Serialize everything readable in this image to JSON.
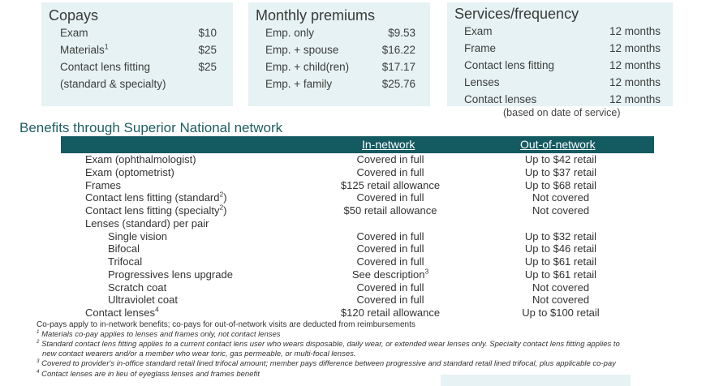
{
  "copays": {
    "title": "Copays",
    "rows": [
      {
        "label": "Exam",
        "value": "$10"
      },
      {
        "label": "Materials",
        "sup": "1",
        "value": "$25"
      },
      {
        "label": "Contact lens fitting",
        "value": "$25"
      },
      {
        "label": "(standard & specialty)",
        "value": ""
      }
    ]
  },
  "premiums": {
    "title": "Monthly premiums",
    "rows": [
      {
        "label": "Emp. only",
        "value": "$9.53"
      },
      {
        "label": "Emp. + spouse",
        "value": "$16.22"
      },
      {
        "label": "Emp. + child(ren)",
        "value": "$17.17"
      },
      {
        "label": "Emp. + family",
        "value": "$25.76"
      }
    ]
  },
  "services": {
    "title": "Services/frequency",
    "rows": [
      {
        "label": "Exam",
        "value": "12 months"
      },
      {
        "label": "Frame",
        "value": "12 months"
      },
      {
        "label": "Contact lens fitting",
        "value": "12 months"
      },
      {
        "label": "Lenses",
        "value": "12 months"
      },
      {
        "label": "Contact lenses",
        "value": "12 months"
      }
    ],
    "note": "(based on date of service)"
  },
  "benefits": {
    "title": "Benefits through Superior National network",
    "col_in": "In-network",
    "col_out": "Out-of-network",
    "rows": [
      {
        "label": "Exam (ophthalmologist)",
        "indent": 0,
        "in": "Covered in full",
        "out": "Up to $42 retail"
      },
      {
        "label": "Exam (optometrist)",
        "indent": 0,
        "in": "Covered in full",
        "out": "Up to $37 retail"
      },
      {
        "label": "Frames",
        "indent": 0,
        "in": "$125 retail allowance",
        "out": "Up to $68 retail"
      },
      {
        "label": "Contact lens fitting (standard",
        "sup": "2",
        "after": ")",
        "indent": 0,
        "in": "Covered in full",
        "out": "Not covered"
      },
      {
        "label": "Contact lens fitting (specialty",
        "sup": "2",
        "after": ")",
        "indent": 0,
        "in": "$50 retail allowance",
        "out": "Not covered"
      },
      {
        "label": "Lenses (standard) per pair",
        "indent": 0,
        "in": "",
        "out": ""
      },
      {
        "label": "Single vision",
        "indent": 1,
        "in": "Covered in full",
        "out": "Up to $32 retail"
      },
      {
        "label": "Bifocal",
        "indent": 1,
        "in": "Covered in full",
        "out": "Up to $46 retail"
      },
      {
        "label": "Trifocal",
        "indent": 1,
        "in": "Covered in full",
        "out": "Up to $61 retail"
      },
      {
        "label": "Progressives lens upgrade",
        "indent": 1,
        "in": "See description",
        "in_sup": "3",
        "out": "Up to $61 retail"
      },
      {
        "label": "Scratch coat",
        "indent": 1,
        "in": "Covered in full",
        "out": "Not covered"
      },
      {
        "label": "Ultraviolet coat",
        "indent": 1,
        "in": "Covered in full",
        "out": "Not covered"
      },
      {
        "label": "Contact lenses",
        "sup": "4",
        "indent": 0,
        "in": "$120 retail allowance",
        "out": "Up to $100 retail"
      }
    ]
  },
  "footnotes": {
    "main": "Co-pays apply to in-network benefits; co-pays for out-of-network visits are deducted from reimbursements",
    "n1_num": "1",
    "n1": "Materials co-pay applies to lenses and frames only, not contact lenses",
    "n2_num": "2",
    "n2a": "Standard contact lens fitting applies to a current contact lens user who wears disposable, daily wear, or extended wear lenses only. Specialty contact lens fitting applies to",
    "n2b": "new contact wearers and/or a member who wear toric, gas permeable, or multi-focal lenses.",
    "n3_num": "3",
    "n3": "Covered to provider's in-office standard retail lined trifocal amount; member pays difference between progressive and standard retail lined trifocal, plus applicable co-pay",
    "n4_num": "4",
    "n4": "Contact lenses are in lieu of eyeglass lenses and frames benefit"
  }
}
